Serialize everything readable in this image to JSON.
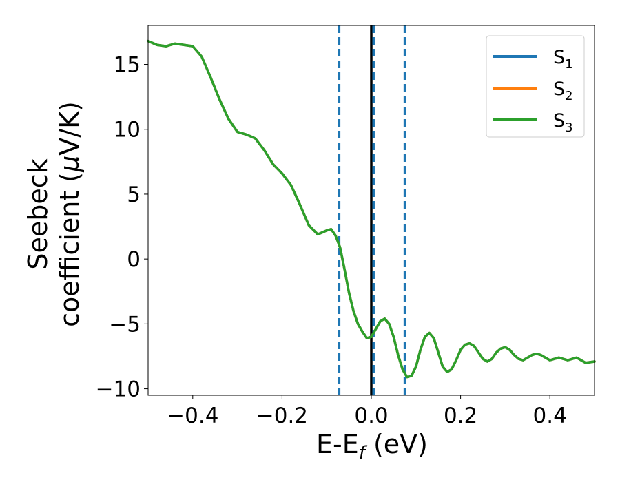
{
  "chart_data": {
    "type": "line",
    "xlabel": "E-E",
    "xlabel_sub": "f",
    "xlabel_unit": " (eV)",
    "ylabel_line1": "Seebeck",
    "ylabel_line2": "coefficient  (",
    "ylabel_mu": "μ",
    "ylabel_unit": "V/K)",
    "xlim": [
      -0.5,
      0.5
    ],
    "ylim": [
      -10.5,
      18
    ],
    "xticks": [
      -0.4,
      -0.2,
      0.0,
      0.2,
      0.4
    ],
    "xtick_labels": [
      "−0.4",
      "−0.2",
      "0.0",
      "0.2",
      "0.4"
    ],
    "yticks": [
      -10,
      -5,
      0,
      5,
      10,
      15
    ],
    "ytick_labels": [
      "−10",
      "−5",
      "0",
      "5",
      "10",
      "15"
    ],
    "grid": false,
    "legend_position": "top-right",
    "x": [
      -0.5,
      -0.48,
      -0.46,
      -0.44,
      -0.42,
      -0.4,
      -0.38,
      -0.36,
      -0.34,
      -0.32,
      -0.3,
      -0.28,
      -0.26,
      -0.24,
      -0.22,
      -0.2,
      -0.18,
      -0.16,
      -0.14,
      -0.12,
      -0.1,
      -0.09,
      -0.08,
      -0.07,
      -0.06,
      -0.05,
      -0.04,
      -0.03,
      -0.02,
      -0.01,
      0.0,
      0.01,
      0.02,
      0.03,
      0.04,
      0.05,
      0.06,
      0.07,
      0.08,
      0.09,
      0.1,
      0.11,
      0.12,
      0.13,
      0.14,
      0.15,
      0.16,
      0.17,
      0.18,
      0.19,
      0.2,
      0.21,
      0.22,
      0.23,
      0.24,
      0.25,
      0.26,
      0.27,
      0.28,
      0.29,
      0.3,
      0.31,
      0.32,
      0.33,
      0.34,
      0.35,
      0.36,
      0.37,
      0.38,
      0.39,
      0.4,
      0.42,
      0.44,
      0.46,
      0.48,
      0.5
    ],
    "series": [
      {
        "name": "S",
        "name_sub": "1",
        "color": "#1f77b4",
        "values": [
          16.8,
          16.5,
          16.4,
          16.6,
          16.5,
          16.4,
          15.6,
          14.0,
          12.3,
          10.8,
          9.8,
          9.6,
          9.3,
          8.4,
          7.3,
          6.6,
          5.7,
          4.2,
          2.6,
          1.9,
          2.2,
          2.3,
          1.8,
          0.9,
          -0.8,
          -2.6,
          -4.0,
          -5.0,
          -5.6,
          -6.1,
          -6.0,
          -5.4,
          -4.8,
          -4.6,
          -5.0,
          -6.0,
          -7.4,
          -8.5,
          -9.1,
          -9.0,
          -8.3,
          -7.0,
          -6.0,
          -5.7,
          -6.1,
          -7.2,
          -8.3,
          -8.7,
          -8.5,
          -7.8,
          -7.0,
          -6.6,
          -6.5,
          -6.7,
          -7.2,
          -7.7,
          -7.9,
          -7.7,
          -7.2,
          -6.9,
          -6.8,
          -7.0,
          -7.4,
          -7.7,
          -7.8,
          -7.6,
          -7.4,
          -7.3,
          -7.4,
          -7.6,
          -7.8,
          -7.6,
          -7.8,
          -7.6,
          -8.0,
          -7.9
        ]
      },
      {
        "name": "S",
        "name_sub": "2",
        "color": "#ff7f0e",
        "values": [
          16.8,
          16.5,
          16.4,
          16.6,
          16.5,
          16.4,
          15.6,
          14.0,
          12.3,
          10.8,
          9.8,
          9.6,
          9.3,
          8.4,
          7.3,
          6.6,
          5.7,
          4.2,
          2.6,
          1.9,
          2.2,
          2.3,
          1.8,
          0.9,
          -0.8,
          -2.6,
          -4.0,
          -5.0,
          -5.6,
          -6.1,
          -6.0,
          -5.4,
          -4.8,
          -4.6,
          -5.0,
          -6.0,
          -7.4,
          -8.5,
          -9.1,
          -9.0,
          -8.3,
          -7.0,
          -6.0,
          -5.7,
          -6.1,
          -7.2,
          -8.3,
          -8.7,
          -8.5,
          -7.8,
          -7.0,
          -6.6,
          -6.5,
          -6.7,
          -7.2,
          -7.7,
          -7.9,
          -7.7,
          -7.2,
          -6.9,
          -6.8,
          -7.0,
          -7.4,
          -7.7,
          -7.8,
          -7.6,
          -7.4,
          -7.3,
          -7.4,
          -7.6,
          -7.8,
          -7.6,
          -7.8,
          -7.6,
          -8.0,
          -7.9
        ]
      },
      {
        "name": "S",
        "name_sub": "3",
        "color": "#2ca02c",
        "values": [
          16.8,
          16.5,
          16.4,
          16.6,
          16.5,
          16.4,
          15.6,
          14.0,
          12.3,
          10.8,
          9.8,
          9.6,
          9.3,
          8.4,
          7.3,
          6.6,
          5.7,
          4.2,
          2.6,
          1.9,
          2.2,
          2.3,
          1.8,
          0.9,
          -0.8,
          -2.6,
          -4.0,
          -5.0,
          -5.6,
          -6.1,
          -6.0,
          -5.4,
          -4.8,
          -4.6,
          -5.0,
          -6.0,
          -7.4,
          -8.5,
          -9.1,
          -9.0,
          -8.3,
          -7.0,
          -6.0,
          -5.7,
          -6.1,
          -7.2,
          -8.3,
          -8.7,
          -8.5,
          -7.8,
          -7.0,
          -6.6,
          -6.5,
          -6.7,
          -7.2,
          -7.7,
          -7.9,
          -7.7,
          -7.2,
          -6.9,
          -6.8,
          -7.0,
          -7.4,
          -7.7,
          -7.8,
          -7.6,
          -7.4,
          -7.3,
          -7.4,
          -7.6,
          -7.8,
          -7.6,
          -7.8,
          -7.6,
          -8.0,
          -7.9
        ]
      }
    ],
    "vertical_lines": [
      {
        "x": -0.072,
        "style": "dashed",
        "color": "#1f77b4"
      },
      {
        "x": 0.0,
        "style": "solid",
        "color": "#000000"
      },
      {
        "x": 0.005,
        "style": "dashed",
        "color": "#1f77b4"
      },
      {
        "x": 0.075,
        "style": "dashed",
        "color": "#1f77b4"
      }
    ]
  }
}
